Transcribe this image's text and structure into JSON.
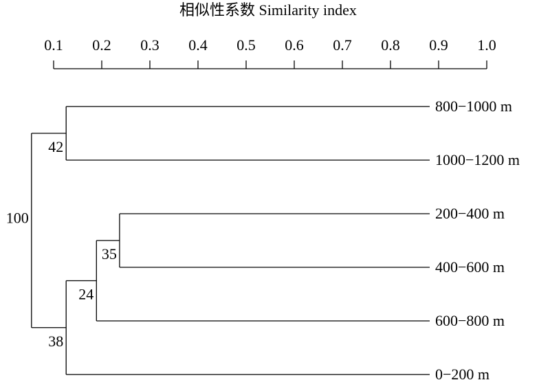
{
  "chart_data": {
    "type": "dendrogram",
    "title": "相似性系数 Similarity index",
    "xlim": [
      0.1,
      1
    ],
    "xticks": [
      0.1,
      0.2,
      0.3,
      0.4,
      0.5,
      0.6,
      0.7,
      0.8,
      0.9,
      {
        "value": 1,
        "label": "1.0"
      }
    ],
    "tree": {
      "label": 100,
      "value": 0.054,
      "children": [
        {
          "label": 42,
          "value": 0.126,
          "children": [
            {
              "label": "800−1000 m"
            },
            {
              "label": "1000−1200 m"
            }
          ]
        },
        {
          "label": 38,
          "value": 0.126,
          "children": [
            {
              "label": 24,
              "value": 0.189,
              "children": [
                {
                  "label": 35,
                  "value": 0.237,
                  "children": [
                    {
                      "label": "200−400 m"
                    },
                    {
                      "label": "400−600 m"
                    }
                  ]
                },
                {
                  "label": "600−800 m"
                }
              ]
            },
            {
              "label": "0−200 m"
            }
          ]
        }
      ]
    }
  }
}
